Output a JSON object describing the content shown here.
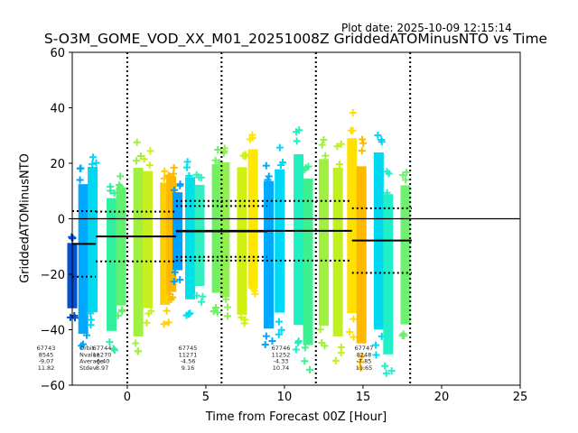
{
  "header": {
    "plot_date": "Plot date: 2025-10-09 12:15:14",
    "title": "S-O3M_GOME_VOD_XX_M01_20251008Z GriddedATOMinusNTO vs Time"
  },
  "chart_data": {
    "type": "scatter",
    "title": "S-O3M_GOME_VOD_XX_M01_20251008Z GriddedATOMinusNTO vs Time",
    "xlabel": "Time from Forecast 00Z [Hour]",
    "ylabel": "GriddedATOMinusNTO",
    "xlim": [
      -3.5,
      25
    ],
    "ylim": [
      -60,
      60
    ],
    "xticks": [
      0,
      5,
      10,
      15,
      20,
      25
    ],
    "yticks": [
      -60,
      -40,
      -20,
      0,
      20,
      40,
      60
    ],
    "grid": false,
    "marker": "plus",
    "colormap": "jet (color by time within orbit)",
    "forecast_lines_x": [
      0,
      6,
      12,
      18
    ],
    "zero_line_y": 0,
    "point_clusters": [
      {
        "x": -3.5,
        "ymin": -36,
        "ymax": -5,
        "color": "#0050d0"
      },
      {
        "x": -2.8,
        "ymin": -50,
        "ymax": 21,
        "color": "#00a8ff"
      },
      {
        "x": -2.2,
        "ymin": -42,
        "ymax": 27,
        "color": "#00d8f0"
      },
      {
        "x": -1.0,
        "ymin": -48,
        "ymax": 15,
        "color": "#30f0a0"
      },
      {
        "x": -0.4,
        "ymin": -38,
        "ymax": 18,
        "color": "#60f070"
      },
      {
        "x": 0.7,
        "ymin": -52,
        "ymax": 28,
        "color": "#a0f040"
      },
      {
        "x": 1.3,
        "ymin": -40,
        "ymax": 25,
        "color": "#c8f020"
      },
      {
        "x": 2.4,
        "ymin": -38,
        "ymax": 20,
        "color": "#ffd000"
      },
      {
        "x": 2.8,
        "ymin": -33,
        "ymax": 22,
        "color": "#ffb800"
      },
      {
        "x": 3.2,
        "ymin": -23,
        "ymax": 14,
        "color": "#00a0ff"
      },
      {
        "x": 4.0,
        "ymin": -36,
        "ymax": 22,
        "color": "#00e0e8"
      },
      {
        "x": 4.6,
        "ymin": -30,
        "ymax": 18,
        "color": "#30f0c0"
      },
      {
        "x": 5.7,
        "ymin": -34,
        "ymax": 27,
        "color": "#70f060"
      },
      {
        "x": 6.2,
        "ymin": -36,
        "ymax": 28,
        "color": "#90f050"
      },
      {
        "x": 7.3,
        "ymin": -43,
        "ymax": 27,
        "color": "#d0f010"
      },
      {
        "x": 8.0,
        "ymin": -33,
        "ymax": 33,
        "color": "#ffe800"
      },
      {
        "x": 9.0,
        "ymin": -48,
        "ymax": 22,
        "color": "#00a8ff"
      },
      {
        "x": 9.7,
        "ymin": -42,
        "ymax": 26,
        "color": "#00d8f8"
      },
      {
        "x": 10.9,
        "ymin": -48,
        "ymax": 33,
        "color": "#20f0c0"
      },
      {
        "x": 11.5,
        "ymin": -55,
        "ymax": 24,
        "color": "#40f090"
      },
      {
        "x": 12.5,
        "ymin": -48,
        "ymax": 31,
        "color": "#a0f040"
      },
      {
        "x": 13.4,
        "ymin": -52,
        "ymax": 28,
        "color": "#c0f020"
      },
      {
        "x": 14.3,
        "ymin": -44,
        "ymax": 39,
        "color": "#ffe000"
      },
      {
        "x": 14.9,
        "ymin": -55,
        "ymax": 29,
        "color": "#ffb800"
      },
      {
        "x": 16.0,
        "ymin": -50,
        "ymax": 34,
        "color": "#00d8f0"
      },
      {
        "x": 16.6,
        "ymin": -58,
        "ymax": 18,
        "color": "#20f0c8"
      },
      {
        "x": 17.7,
        "ymin": -46,
        "ymax": 20,
        "color": "#70f070"
      }
    ],
    "orbit_stats_lines": [
      {
        "x_start": -3.5,
        "x_end": -2.0,
        "mean": -9.07,
        "stdev": 11.82
      },
      {
        "x_start": -2.0,
        "x_end": 3.1,
        "mean": -6.4,
        "stdev": 8.97
      },
      {
        "x_start": 3.1,
        "x_end": 8.9,
        "mean": -4.56,
        "stdev": 9.16
      },
      {
        "x_start": 3.1,
        "x_end": 14.3,
        "mean": -4.33,
        "stdev": 10.74
      },
      {
        "x_start": 14.3,
        "x_end": 18.1,
        "mean": -7.85,
        "stdev": 11.65
      }
    ],
    "stats_row_labels": [
      "Orbit",
      "Nvalue",
      "Average",
      "Stdev"
    ],
    "annotations": [
      {
        "orbit": "67743",
        "nvalue": "8545",
        "average": "-9.07",
        "stdev": "11.82"
      },
      {
        "orbit": "67744",
        "nvalue": "11270",
        "average": "-6.40",
        "stdev": "8.97"
      },
      {
        "orbit": "67745",
        "nvalue": "11271",
        "average": "-4.56",
        "stdev": "9.16"
      },
      {
        "orbit": "67746",
        "nvalue": "11252",
        "average": "-4.33",
        "stdev": "10.74"
      },
      {
        "orbit": "67747",
        "nvalue": "8248",
        "average": "-7.85",
        "stdev": "11.65"
      }
    ]
  }
}
